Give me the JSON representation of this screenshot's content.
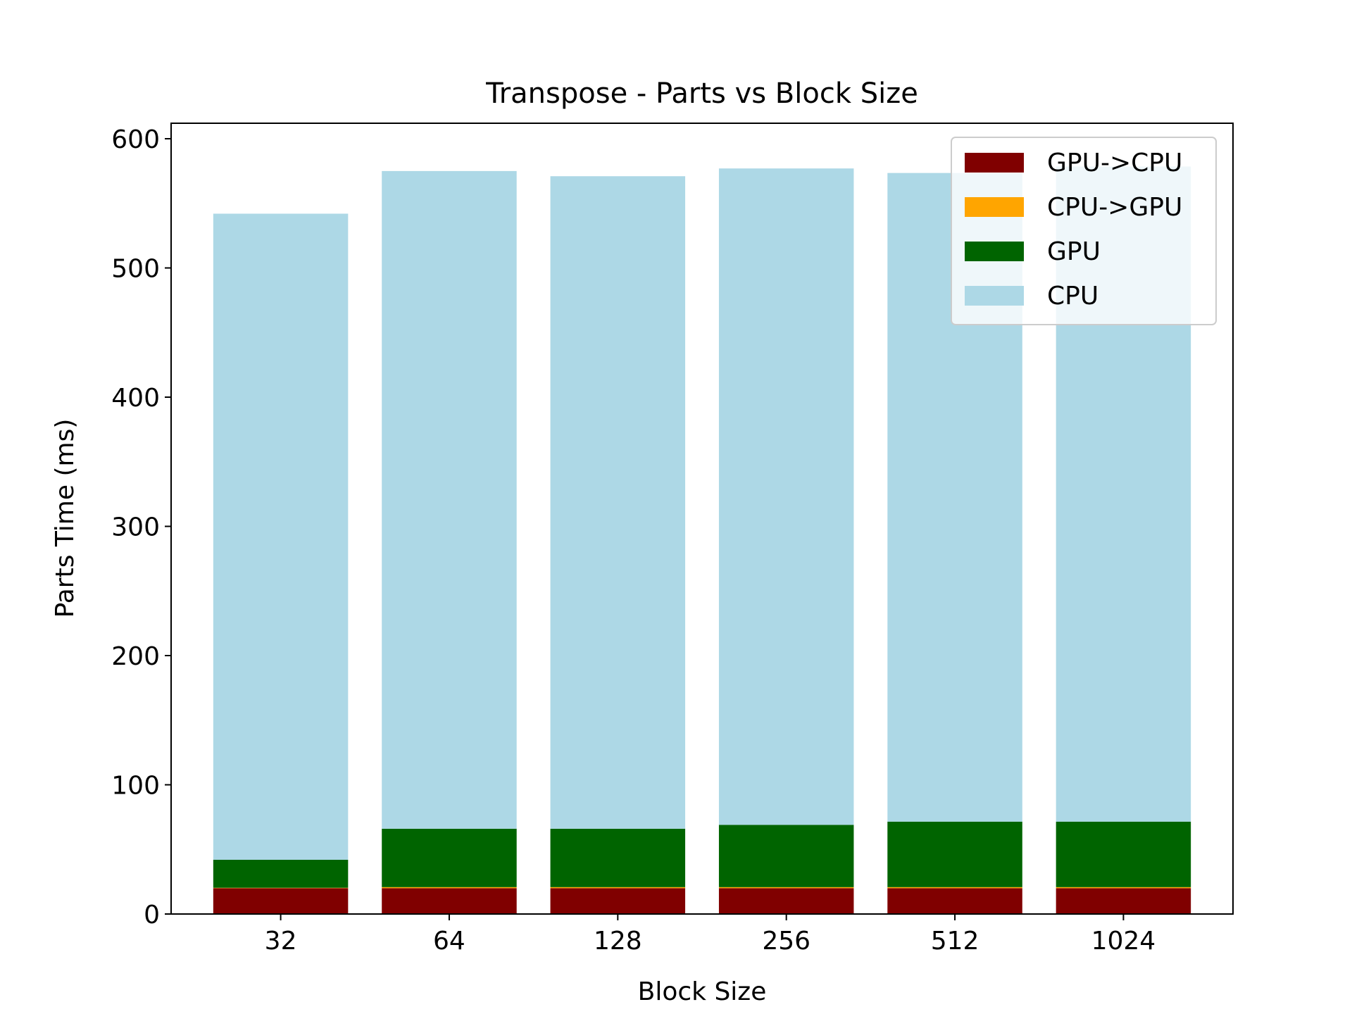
{
  "chart_data": {
    "type": "bar",
    "stacked": true,
    "title": "Transpose - Parts vs Block Size",
    "xlabel": "Block Size",
    "ylabel": "Parts Time (ms)",
    "categories": [
      "32",
      "64",
      "128",
      "256",
      "512",
      "1024"
    ],
    "ylim": [
      0,
      612
    ],
    "yticks": [
      0,
      100,
      200,
      300,
      400,
      500,
      600
    ],
    "grid": false,
    "legend_position": "top-right",
    "series": [
      {
        "name": "GPU->CPU",
        "color": "#800000",
        "values": [
          20,
          20,
          20,
          20,
          20,
          20
        ]
      },
      {
        "name": "CPU->GPU",
        "color": "#ffa500",
        "values": [
          0.3,
          0.8,
          0.8,
          0.8,
          0.8,
          0.8
        ]
      },
      {
        "name": "GPU",
        "color": "#006400",
        "values": [
          21.7,
          45.2,
          45.2,
          48.2,
          50.7,
          50.7
        ]
      },
      {
        "name": "CPU",
        "color": "#add8e6",
        "values": [
          500,
          509,
          505,
          508,
          502,
          507
        ]
      }
    ]
  }
}
